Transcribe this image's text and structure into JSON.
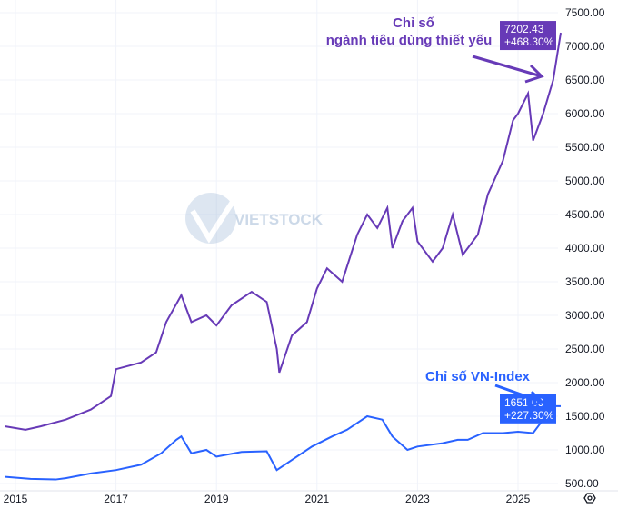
{
  "chart_data": {
    "type": "line",
    "ylim": [
      500,
      7500
    ],
    "xlim": [
      2014.8,
      2026.3
    ],
    "y_ticks": [
      "500.00",
      "1000.00",
      "1500.00",
      "2000.00",
      "2500.00",
      "3000.00",
      "3500.00",
      "4000.00",
      "4500.00",
      "5000.00",
      "5500.00",
      "6000.00",
      "6500.00",
      "7000.00",
      "7500.00"
    ],
    "x_ticks": [
      "2015",
      "2017",
      "2019",
      "2021",
      "2023",
      "2025"
    ],
    "grid": true,
    "watermark": "VIETSTOCK",
    "series": [
      {
        "name": "Chỉ số ngành tiêu dùng thiết yếu",
        "color": "#673ab7",
        "last_value": "7202.43",
        "change": "+468.30%",
        "x": [
          2014.8,
          2015.2,
          2015.5,
          2016.0,
          2016.5,
          2016.9,
          2017.0,
          2017.5,
          2017.8,
          2018.0,
          2018.3,
          2018.5,
          2018.8,
          2019.0,
          2019.3,
          2019.7,
          2020.0,
          2020.2,
          2020.25,
          2020.5,
          2020.8,
          2021.0,
          2021.2,
          2021.5,
          2021.8,
          2022.0,
          2022.2,
          2022.4,
          2022.5,
          2022.7,
          2022.9,
          2023.0,
          2023.3,
          2023.5,
          2023.7,
          2023.9,
          2024.2,
          2024.4,
          2024.7,
          2024.9,
          2025.0,
          2025.2,
          2025.3,
          2025.5,
          2025.7,
          2025.85
        ],
        "y": [
          1350,
          1300,
          1350,
          1450,
          1600,
          1800,
          2200,
          2300,
          2450,
          2900,
          3300,
          2900,
          3000,
          2850,
          3150,
          3350,
          3200,
          2500,
          2150,
          2700,
          2900,
          3400,
          3700,
          3500,
          4200,
          4500,
          4300,
          4600,
          4000,
          4400,
          4600,
          4100,
          3800,
          4000,
          4500,
          3900,
          4200,
          4800,
          5300,
          5900,
          6000,
          6300,
          5600,
          6000,
          6500,
          7202
        ]
      },
      {
        "name": "Chỉ số VN-Index",
        "color": "#2962ff",
        "last_value": "1651.09",
        "change": "+227.30%",
        "x": [
          2014.8,
          2015.3,
          2015.8,
          2016.0,
          2016.5,
          2017.0,
          2017.5,
          2017.9,
          2018.2,
          2018.3,
          2018.5,
          2018.8,
          2019.0,
          2019.5,
          2020.0,
          2020.2,
          2020.5,
          2020.9,
          2021.3,
          2021.6,
          2022.0,
          2022.3,
          2022.5,
          2022.8,
          2023.0,
          2023.5,
          2023.8,
          2024.0,
          2024.3,
          2024.7,
          2025.0,
          2025.3,
          2025.5,
          2025.7,
          2025.85
        ],
        "y": [
          600,
          570,
          560,
          580,
          650,
          700,
          780,
          950,
          1150,
          1200,
          950,
          1000,
          900,
          970,
          980,
          700,
          850,
          1050,
          1200,
          1300,
          1500,
          1450,
          1200,
          1000,
          1050,
          1100,
          1150,
          1150,
          1250,
          1250,
          1270,
          1250,
          1450,
          1650,
          1651
        ]
      }
    ],
    "annotations": [
      {
        "lines": [
          "Chỉ số",
          "ngành tiêu dùng thiết yếu"
        ],
        "color": "#673ab7"
      },
      {
        "lines": [
          "Chỉ số VN-Index"
        ],
        "color": "#2962ff"
      }
    ]
  },
  "settings_icon": "gear-icon"
}
